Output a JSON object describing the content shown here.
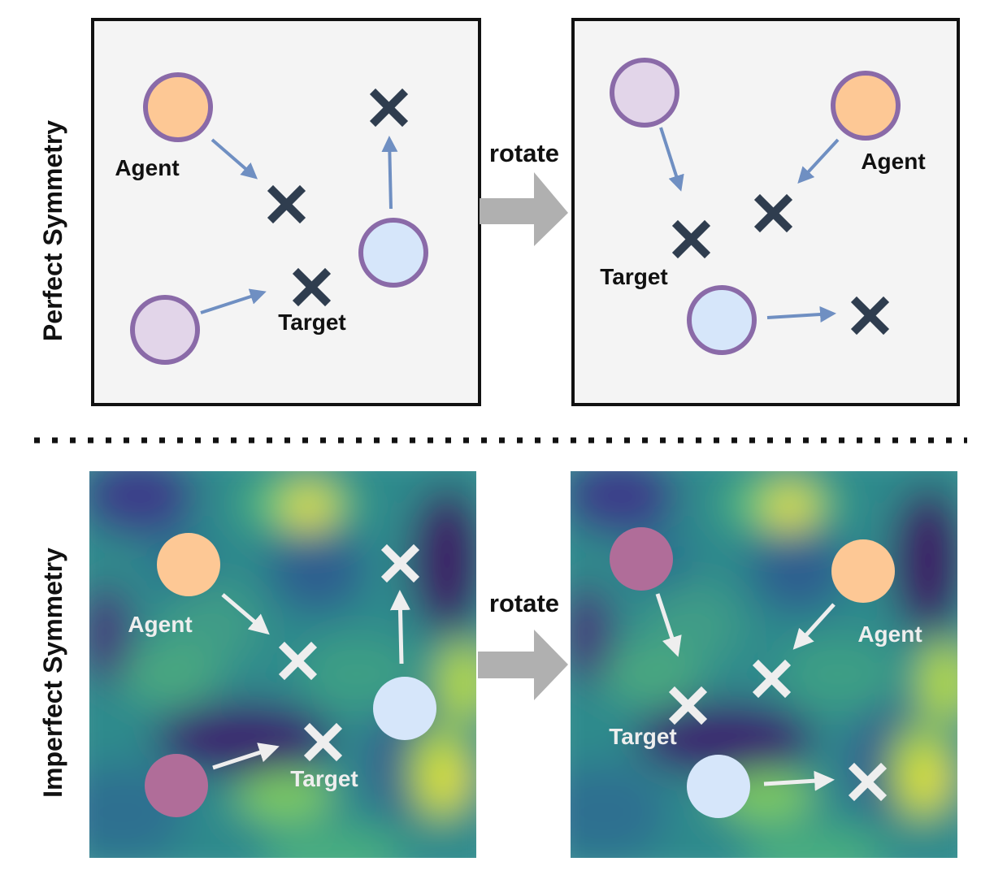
{
  "rows": [
    {
      "label": "Perfect Symmetry",
      "arrow_label": "rotate",
      "left_panel": {
        "agent_label": "Agent",
        "target_label": "Target"
      },
      "right_panel": {
        "agent_label": "Agent",
        "target_label": "Target"
      }
    },
    {
      "label": "Imperfect Symmetry",
      "arrow_label": "rotate",
      "left_panel": {
        "agent_label": "Agent",
        "target_label": "Target"
      },
      "right_panel": {
        "agent_label": "Agent",
        "target_label": "Target"
      }
    }
  ],
  "colors": {
    "panel_bg": "#f4f4f4",
    "agent_orange": "#fdc895",
    "agent_purple": "#e2d5e9",
    "agent_blue": "#d6e6fa",
    "agent_outline": "#8a6aa8",
    "target_dark": "#2f3d4f",
    "arrow_blue": "#6f8fc2",
    "rotate_arrow": "#b0b0b0",
    "agent_magenta": "#b06d99",
    "imperfect_marks": "#eeeeee"
  }
}
